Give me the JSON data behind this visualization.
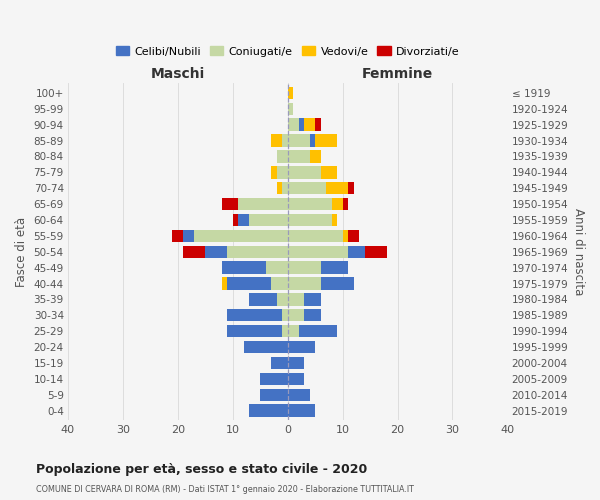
{
  "age_groups": [
    "0-4",
    "5-9",
    "10-14",
    "15-19",
    "20-24",
    "25-29",
    "30-34",
    "35-39",
    "40-44",
    "45-49",
    "50-54",
    "55-59",
    "60-64",
    "65-69",
    "70-74",
    "75-79",
    "80-84",
    "85-89",
    "90-94",
    "95-99",
    "100+"
  ],
  "birth_years": [
    "2015-2019",
    "2010-2014",
    "2005-2009",
    "2000-2004",
    "1995-1999",
    "1990-1994",
    "1985-1989",
    "1980-1984",
    "1975-1979",
    "1970-1974",
    "1965-1969",
    "1960-1964",
    "1955-1959",
    "1950-1954",
    "1945-1949",
    "1940-1944",
    "1935-1939",
    "1930-1934",
    "1925-1929",
    "1920-1924",
    "≤ 1919"
  ],
  "colors": {
    "celibi": "#4472c4",
    "coniugati": "#c5d8a4",
    "vedovi": "#ffc000",
    "divorziati": "#cc0000"
  },
  "male": {
    "celibi": [
      7,
      5,
      5,
      3,
      8,
      10,
      10,
      5,
      8,
      8,
      4,
      2,
      2,
      0,
      0,
      0,
      0,
      0,
      0,
      0,
      0
    ],
    "coniugati": [
      0,
      0,
      0,
      0,
      0,
      1,
      1,
      2,
      3,
      4,
      11,
      17,
      7,
      9,
      1,
      2,
      2,
      1,
      0,
      0,
      0
    ],
    "vedovi": [
      0,
      0,
      0,
      0,
      0,
      0,
      0,
      0,
      1,
      0,
      0,
      0,
      0,
      0,
      1,
      1,
      0,
      2,
      0,
      0,
      0
    ],
    "divorziati": [
      0,
      0,
      0,
      0,
      0,
      0,
      0,
      0,
      0,
      0,
      4,
      2,
      1,
      3,
      0,
      0,
      0,
      0,
      0,
      0,
      0
    ]
  },
  "female": {
    "celibi": [
      5,
      4,
      3,
      3,
      5,
      7,
      3,
      3,
      6,
      5,
      3,
      0,
      0,
      0,
      0,
      0,
      0,
      1,
      1,
      0,
      0
    ],
    "coniugati": [
      0,
      0,
      0,
      0,
      0,
      2,
      3,
      3,
      6,
      6,
      11,
      10,
      8,
      8,
      7,
      6,
      4,
      4,
      2,
      1,
      0
    ],
    "vedovi": [
      0,
      0,
      0,
      0,
      0,
      0,
      0,
      0,
      0,
      0,
      0,
      1,
      1,
      2,
      4,
      3,
      2,
      4,
      2,
      0,
      1
    ],
    "divorziati": [
      0,
      0,
      0,
      0,
      0,
      0,
      0,
      0,
      0,
      0,
      4,
      2,
      0,
      1,
      1,
      0,
      0,
      0,
      1,
      0,
      0
    ]
  },
  "title": "Popolazione per età, sesso e stato civile - 2020",
  "subtitle": "COMUNE DI CERVARA DI ROMA (RM) - Dati ISTAT 1° gennaio 2020 - Elaborazione TUTTITALIA.IT",
  "xlabel_left": "Maschi",
  "xlabel_right": "Femmine",
  "ylabel_left": "Fasce di età",
  "ylabel_right": "Anni di nascita",
  "xlim": 40,
  "legend_labels": [
    "Celibi/Nubili",
    "Coniugati/e",
    "Vedovi/e",
    "Divorziati/e"
  ],
  "background_color": "#f5f5f5",
  "grid_color": "#dddddd"
}
